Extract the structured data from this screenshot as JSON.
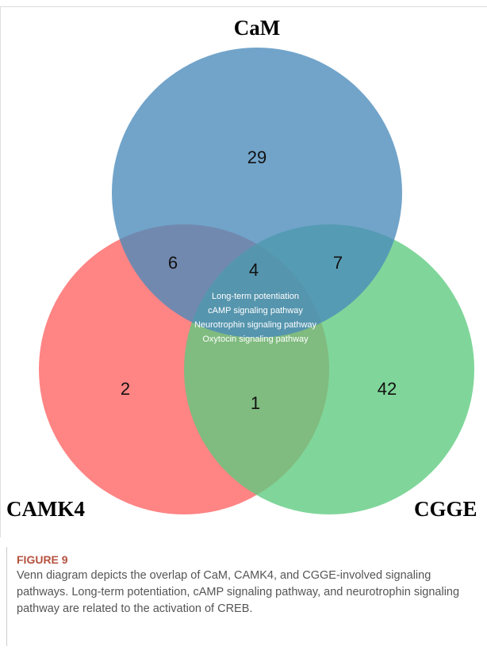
{
  "chart_data": {
    "type": "venn",
    "sets": [
      {
        "name": "CaM",
        "color": "#4a8bbb"
      },
      {
        "name": "CAMK4",
        "color": "#ff6262"
      },
      {
        "name": "CGGE",
        "color": "#5ccb7e"
      }
    ],
    "values": [
      29,
      6,
      4,
      7,
      2,
      1,
      42
    ],
    "annotation": [
      "Long-term potentiation",
      "cAMP signaling pathway",
      "Neurotrophin signaling pathway",
      "Oxytocin signaling pathway"
    ]
  },
  "caption": {
    "label": "FIGURE 9",
    "text": "Venn diagram depicts the overlap of CaM, CAMK4, and CGGE-involved signaling pathways. Long-term potentiation, cAMP signaling pathway, and neurotrophin signaling pathway are related to the activation of CREB."
  }
}
